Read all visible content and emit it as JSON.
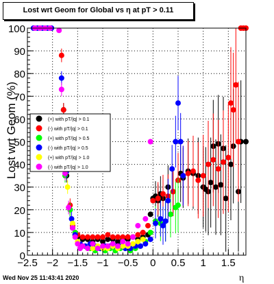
{
  "title": "Lost wrt Geom for Global vs   η at pT > 0.11",
  "footer": {
    "timestamp": "Wed Nov 25 11:43:41 2020"
  },
  "chart_data": {
    "type": "scatter",
    "title": "Lost wrt Geom for Global vs   η at pT > 0.11",
    "xlabel": "η",
    "ylabel": "Lost wrt Geom (%)",
    "xlim": [
      -2.5,
      1.85
    ],
    "ylim": [
      0,
      100
    ],
    "xticks": [
      -2.5,
      -2,
      -1.5,
      -1,
      -0.5,
      0,
      0.5,
      1,
      1.5
    ],
    "xtick_labels": [
      "−2.5",
      "−2",
      "−1.5",
      "−1",
      "−0.5",
      "0",
      "0.5",
      "1",
      "1.5"
    ],
    "yticks": [
      0,
      10,
      20,
      30,
      40,
      50,
      60,
      70,
      80,
      90,
      100
    ],
    "ytick_labels": [
      "0",
      "10",
      "20",
      "30",
      "40",
      "50",
      "60",
      "70",
      "80",
      "90",
      "100"
    ],
    "grid": true,
    "legend_position": "left-middle",
    "series": [
      {
        "name": "(+) with pT/|q| > 0.1",
        "color": "#000000",
        "points": [
          [
            -1.78,
            64
          ],
          [
            -1.72,
            35
          ],
          [
            -1.65,
            20
          ],
          [
            -1.6,
            12
          ],
          [
            -1.55,
            9
          ],
          [
            -1.5,
            8
          ],
          [
            -1.4,
            7
          ],
          [
            -1.3,
            7
          ],
          [
            -1.2,
            6
          ],
          [
            -1.1,
            7
          ],
          [
            -1.0,
            6
          ],
          [
            -0.9,
            7
          ],
          [
            -0.8,
            7
          ],
          [
            -0.7,
            6
          ],
          [
            -0.6,
            7
          ],
          [
            -0.5,
            7
          ],
          [
            -0.4,
            8
          ],
          [
            -0.3,
            7
          ],
          [
            -0.2,
            8
          ],
          [
            -0.1,
            9
          ],
          [
            -0.05,
            18
          ],
          [
            0.0,
            25
          ],
          [
            0.05,
            26
          ],
          [
            0.1,
            24
          ],
          [
            0.15,
            27
          ],
          [
            0.2,
            25
          ],
          [
            0.3,
            30
          ],
          [
            0.4,
            28
          ],
          [
            0.5,
            33
          ],
          [
            0.55,
            36
          ],
          [
            0.6,
            34
          ],
          [
            0.7,
            37
          ],
          [
            0.8,
            36
          ],
          [
            0.9,
            35
          ],
          [
            1.0,
            30
          ],
          [
            1.05,
            29
          ],
          [
            1.1,
            28
          ],
          [
            1.15,
            32
          ],
          [
            1.2,
            48
          ],
          [
            1.25,
            30
          ],
          [
            1.3,
            49
          ],
          [
            1.35,
            31
          ],
          [
            1.4,
            47
          ],
          [
            1.45,
            25
          ],
          [
            1.55,
            40
          ],
          [
            1.6,
            48
          ],
          [
            1.7,
            28
          ],
          [
            1.75,
            50
          ],
          [
            1.85,
            50
          ]
        ]
      },
      {
        "name": "(-) with pT/|q| > 0.1",
        "color": "#ff0000",
        "points": [
          [
            -1.82,
            88
          ],
          [
            -1.78,
            64
          ],
          [
            -1.72,
            37
          ],
          [
            -1.65,
            22
          ],
          [
            -1.6,
            13
          ],
          [
            -1.55,
            10
          ],
          [
            -1.5,
            9
          ],
          [
            -1.4,
            8
          ],
          [
            -1.3,
            8
          ],
          [
            -1.2,
            8
          ],
          [
            -1.1,
            8
          ],
          [
            -1.0,
            8
          ],
          [
            -0.9,
            9
          ],
          [
            -0.8,
            8
          ],
          [
            -0.7,
            8
          ],
          [
            -0.6,
            8
          ],
          [
            -0.5,
            8
          ],
          [
            -0.4,
            8
          ],
          [
            -0.3,
            9
          ],
          [
            -0.2,
            10
          ],
          [
            -0.1,
            13
          ],
          [
            0.0,
            24
          ],
          [
            0.1,
            25
          ],
          [
            0.2,
            27
          ],
          [
            0.3,
            26
          ],
          [
            0.4,
            28
          ],
          [
            0.5,
            33
          ],
          [
            0.6,
            35
          ],
          [
            0.7,
            36
          ],
          [
            0.8,
            37
          ],
          [
            0.9,
            33
          ],
          [
            1.0,
            35
          ],
          [
            1.1,
            40
          ],
          [
            1.2,
            42
          ],
          [
            1.3,
            38
          ],
          [
            1.4,
            41
          ],
          [
            1.5,
            43
          ],
          [
            1.55,
            67
          ],
          [
            1.6,
            64
          ],
          [
            1.65,
            75
          ],
          [
            1.7,
            50
          ],
          [
            1.75,
            100
          ],
          [
            1.8,
            100
          ],
          [
            1.85,
            100
          ]
        ]
      },
      {
        "name": "(+) with pT/|q| > 0.5",
        "color": "#00ff00",
        "points": [
          [
            -1.75,
            35
          ],
          [
            -1.65,
            20
          ],
          [
            -1.55,
            10
          ],
          [
            -1.45,
            5
          ],
          [
            -1.35,
            4
          ],
          [
            -1.25,
            3
          ],
          [
            -1.15,
            2
          ],
          [
            -1.05,
            3
          ],
          [
            -0.95,
            2
          ],
          [
            -0.85,
            3
          ],
          [
            -0.75,
            2
          ],
          [
            -0.65,
            3
          ],
          [
            -0.55,
            3
          ],
          [
            -0.45,
            2
          ],
          [
            -0.35,
            3
          ],
          [
            -0.25,
            4
          ],
          [
            -0.15,
            6
          ],
          [
            -0.05,
            10
          ],
          [
            0.05,
            15
          ],
          [
            0.15,
            14
          ],
          [
            0.25,
            15
          ],
          [
            0.35,
            18
          ],
          [
            0.45,
            21
          ],
          [
            0.5,
            22
          ]
        ]
      },
      {
        "name": "(-) with pT/|q| > 0.5",
        "color": "#0000ff",
        "points": [
          [
            -2.38,
            100
          ],
          [
            -2.3,
            100
          ],
          [
            -2.2,
            100
          ],
          [
            -2.1,
            100
          ],
          [
            -2.02,
            100
          ],
          [
            -1.82,
            78
          ],
          [
            -1.72,
            37
          ],
          [
            -1.62,
            16
          ],
          [
            -1.55,
            9
          ],
          [
            -1.45,
            5
          ],
          [
            -1.35,
            4
          ],
          [
            -1.25,
            5
          ],
          [
            -1.15,
            4
          ],
          [
            -1.05,
            3
          ],
          [
            -0.95,
            4
          ],
          [
            -0.85,
            4
          ],
          [
            -0.75,
            4
          ],
          [
            -0.65,
            4
          ],
          [
            -0.55,
            3
          ],
          [
            -0.45,
            3
          ],
          [
            -0.35,
            4
          ],
          [
            -0.25,
            4
          ],
          [
            -0.15,
            5
          ],
          [
            -0.05,
            7
          ],
          [
            0.05,
            14
          ],
          [
            0.15,
            16
          ],
          [
            0.2,
            13
          ],
          [
            0.25,
            15
          ],
          [
            0.3,
            24
          ],
          [
            0.38,
            38
          ],
          [
            0.45,
            50
          ],
          [
            0.5,
            67
          ],
          [
            0.55,
            50
          ],
          [
            0.6,
            35
          ]
        ]
      },
      {
        "name": "(+) with pT/|q| > 1.0",
        "color": "#ffff00",
        "points": [
          [
            -1.7,
            30
          ],
          [
            -1.6,
            14
          ],
          [
            -1.5,
            6
          ],
          [
            -1.4,
            4
          ],
          [
            -1.3,
            3
          ],
          [
            -1.2,
            3
          ],
          [
            -1.1,
            4
          ],
          [
            -1.0,
            3
          ],
          [
            -0.9,
            3
          ],
          [
            -0.8,
            4
          ],
          [
            -0.7,
            3
          ],
          [
            -0.6,
            4
          ],
          [
            -0.5,
            4
          ],
          [
            -0.4,
            5
          ],
          [
            -0.3,
            6
          ],
          [
            -0.2,
            7
          ]
        ]
      },
      {
        "name": "(-) with pT/|q| > 1.0",
        "color": "#ff00ff",
        "points": [
          [
            -2.35,
            100
          ],
          [
            -2.25,
            100
          ],
          [
            -2.15,
            100
          ],
          [
            -2.05,
            100
          ],
          [
            -1.87,
            99
          ],
          [
            -1.82,
            73
          ],
          [
            -1.75,
            36
          ],
          [
            -1.68,
            21
          ],
          [
            -1.6,
            12
          ],
          [
            -1.55,
            8
          ],
          [
            -1.5,
            5
          ],
          [
            -1.45,
            3
          ],
          [
            -1.4,
            4
          ],
          [
            -1.3,
            3
          ],
          [
            -1.2,
            5
          ],
          [
            -1.1,
            3
          ],
          [
            -1.0,
            4
          ],
          [
            -0.9,
            4
          ],
          [
            -0.8,
            5
          ],
          [
            -0.7,
            4
          ],
          [
            -0.6,
            6
          ],
          [
            -0.5,
            5
          ],
          [
            -0.4,
            8
          ],
          [
            -0.3,
            13
          ],
          [
            -0.15,
            16
          ],
          [
            -0.05,
            50
          ]
        ]
      }
    ]
  }
}
